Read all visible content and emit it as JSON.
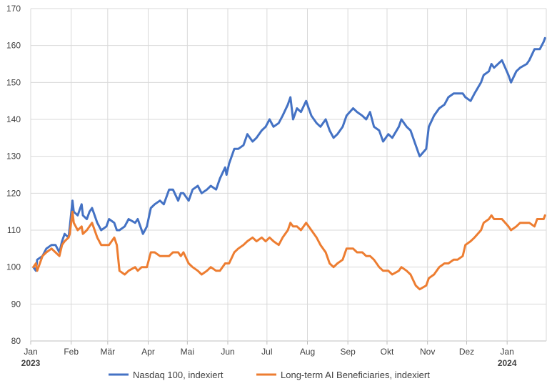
{
  "chart_data": {
    "type": "line",
    "title": "",
    "xlabel": "",
    "ylabel": "",
    "ylim": [
      80,
      170
    ],
    "yticks": [
      80,
      90,
      100,
      110,
      120,
      130,
      140,
      150,
      160,
      170
    ],
    "xlim": [
      "2023-01-01",
      "2024-01-31"
    ],
    "x_ticks": [
      {
        "date": "2023-01-01",
        "label": "Jan"
      },
      {
        "date": "2023-02-01",
        "label": "Feb"
      },
      {
        "date": "2023-03-01",
        "label": "Mär"
      },
      {
        "date": "2023-04-01",
        "label": "Apr"
      },
      {
        "date": "2023-05-01",
        "label": "Mai"
      },
      {
        "date": "2023-06-01",
        "label": "Jun"
      },
      {
        "date": "2023-07-01",
        "label": "Jul"
      },
      {
        "date": "2023-08-01",
        "label": "Aug"
      },
      {
        "date": "2023-09-01",
        "label": "Sep"
      },
      {
        "date": "2023-10-01",
        "label": "Okt"
      },
      {
        "date": "2023-11-01",
        "label": "Nov"
      },
      {
        "date": "2023-12-01",
        "label": "Dez"
      },
      {
        "date": "2024-01-01",
        "label": "Jan"
      }
    ],
    "year_labels": [
      {
        "date": "2023-01-01",
        "label": "2023"
      },
      {
        "date": "2024-01-01",
        "label": "2024"
      }
    ],
    "grid": true,
    "legend": "bottom",
    "series": [
      {
        "name": "Nasdaq 100, indexiert",
        "color": "#4472c4",
        "points": [
          [
            "2023-01-03",
            100
          ],
          [
            "2023-01-05",
            99
          ],
          [
            "2023-01-06",
            102
          ],
          [
            "2023-01-10",
            103
          ],
          [
            "2023-01-13",
            105
          ],
          [
            "2023-01-17",
            106
          ],
          [
            "2023-01-20",
            106
          ],
          [
            "2023-01-23",
            104
          ],
          [
            "2023-01-25",
            107
          ],
          [
            "2023-01-27",
            109
          ],
          [
            "2023-01-30",
            108
          ],
          [
            "2023-01-31",
            111
          ],
          [
            "2023-02-02",
            118
          ],
          [
            "2023-02-03",
            115
          ],
          [
            "2023-02-06",
            114
          ],
          [
            "2023-02-09",
            117
          ],
          [
            "2023-02-10",
            114
          ],
          [
            "2023-02-13",
            113
          ],
          [
            "2023-02-15",
            115
          ],
          [
            "2023-02-17",
            116
          ],
          [
            "2023-02-21",
            112
          ],
          [
            "2023-02-24",
            110
          ],
          [
            "2023-02-28",
            111
          ],
          [
            "2023-03-02",
            113
          ],
          [
            "2023-03-06",
            112
          ],
          [
            "2023-03-08",
            110
          ],
          [
            "2023-03-10",
            110
          ],
          [
            "2023-03-14",
            111
          ],
          [
            "2023-03-17",
            113
          ],
          [
            "2023-03-22",
            112
          ],
          [
            "2023-03-24",
            113
          ],
          [
            "2023-03-27",
            110
          ],
          [
            "2023-03-28",
            109
          ],
          [
            "2023-03-31",
            111
          ],
          [
            "2023-04-03",
            116
          ],
          [
            "2023-04-06",
            117
          ],
          [
            "2023-04-10",
            118
          ],
          [
            "2023-04-13",
            117
          ],
          [
            "2023-04-17",
            121
          ],
          [
            "2023-04-20",
            121
          ],
          [
            "2023-04-24",
            118
          ],
          [
            "2023-04-26",
            120
          ],
          [
            "2023-04-28",
            120
          ],
          [
            "2023-05-02",
            118
          ],
          [
            "2023-05-05",
            121
          ],
          [
            "2023-05-09",
            122
          ],
          [
            "2023-05-12",
            120
          ],
          [
            "2023-05-16",
            121
          ],
          [
            "2023-05-19",
            122
          ],
          [
            "2023-05-23",
            121
          ],
          [
            "2023-05-26",
            124
          ],
          [
            "2023-05-30",
            127
          ],
          [
            "2023-05-31",
            125
          ],
          [
            "2023-06-02",
            128
          ],
          [
            "2023-06-06",
            132
          ],
          [
            "2023-06-09",
            132
          ],
          [
            "2023-06-13",
            133
          ],
          [
            "2023-06-16",
            136
          ],
          [
            "2023-06-20",
            134
          ],
          [
            "2023-06-23",
            135
          ],
          [
            "2023-06-27",
            137
          ],
          [
            "2023-06-30",
            138
          ],
          [
            "2023-07-03",
            140
          ],
          [
            "2023-07-06",
            138
          ],
          [
            "2023-07-10",
            139
          ],
          [
            "2023-07-13",
            141
          ],
          [
            "2023-07-17",
            144
          ],
          [
            "2023-07-19",
            146
          ],
          [
            "2023-07-21",
            140
          ],
          [
            "2023-07-24",
            143
          ],
          [
            "2023-07-27",
            142
          ],
          [
            "2023-07-31",
            145
          ],
          [
            "2023-08-02",
            143
          ],
          [
            "2023-08-04",
            141
          ],
          [
            "2023-08-08",
            139
          ],
          [
            "2023-08-11",
            138
          ],
          [
            "2023-08-15",
            140
          ],
          [
            "2023-08-18",
            137
          ],
          [
            "2023-08-21",
            135
          ],
          [
            "2023-08-24",
            136
          ],
          [
            "2023-08-28",
            138
          ],
          [
            "2023-08-31",
            141
          ],
          [
            "2023-09-05",
            143
          ],
          [
            "2023-09-08",
            142
          ],
          [
            "2023-09-12",
            141
          ],
          [
            "2023-09-15",
            140
          ],
          [
            "2023-09-18",
            142
          ],
          [
            "2023-09-21",
            138
          ],
          [
            "2023-09-25",
            137
          ],
          [
            "2023-09-28",
            134
          ],
          [
            "2023-10-02",
            136
          ],
          [
            "2023-10-05",
            135
          ],
          [
            "2023-10-10",
            138
          ],
          [
            "2023-10-12",
            140
          ],
          [
            "2023-10-16",
            138
          ],
          [
            "2023-10-19",
            137
          ],
          [
            "2023-10-23",
            133
          ],
          [
            "2023-10-26",
            130
          ],
          [
            "2023-10-31",
            132
          ],
          [
            "2023-11-02",
            138
          ],
          [
            "2023-11-06",
            141
          ],
          [
            "2023-11-10",
            143
          ],
          [
            "2023-11-14",
            144
          ],
          [
            "2023-11-17",
            146
          ],
          [
            "2023-11-21",
            147
          ],
          [
            "2023-11-24",
            147
          ],
          [
            "2023-11-28",
            147
          ],
          [
            "2023-11-30",
            146
          ],
          [
            "2023-12-04",
            145
          ],
          [
            "2023-12-07",
            147
          ],
          [
            "2023-12-12",
            150
          ],
          [
            "2023-12-14",
            152
          ],
          [
            "2023-12-18",
            153
          ],
          [
            "2023-12-20",
            155
          ],
          [
            "2023-12-22",
            154
          ],
          [
            "2023-12-28",
            156
          ],
          [
            "2024-01-02",
            152
          ],
          [
            "2024-01-04",
            150
          ],
          [
            "2024-01-08",
            153
          ],
          [
            "2024-01-11",
            154
          ],
          [
            "2024-01-16",
            155
          ],
          [
            "2024-01-18",
            156
          ],
          [
            "2024-01-22",
            159
          ],
          [
            "2024-01-24",
            159
          ],
          [
            "2024-01-26",
            159
          ],
          [
            "2024-01-29",
            161
          ],
          [
            "2024-01-30",
            162
          ]
        ]
      },
      {
        "name": "Long-term AI Beneficiaries, indexiert",
        "color": "#ed7d31",
        "points": [
          [
            "2023-01-03",
            100
          ],
          [
            "2023-01-05",
            101
          ],
          [
            "2023-01-06",
            99
          ],
          [
            "2023-01-10",
            103
          ],
          [
            "2023-01-13",
            104
          ],
          [
            "2023-01-17",
            105
          ],
          [
            "2023-01-20",
            104
          ],
          [
            "2023-01-23",
            103
          ],
          [
            "2023-01-25",
            106
          ],
          [
            "2023-01-27",
            107
          ],
          [
            "2023-01-30",
            108
          ],
          [
            "2023-01-31",
            109
          ],
          [
            "2023-02-02",
            115
          ],
          [
            "2023-02-03",
            112
          ],
          [
            "2023-02-06",
            110
          ],
          [
            "2023-02-09",
            111
          ],
          [
            "2023-02-10",
            109
          ],
          [
            "2023-02-13",
            110
          ],
          [
            "2023-02-15",
            111
          ],
          [
            "2023-02-17",
            112
          ],
          [
            "2023-02-21",
            108
          ],
          [
            "2023-02-24",
            106
          ],
          [
            "2023-02-28",
            106
          ],
          [
            "2023-03-02",
            106
          ],
          [
            "2023-03-06",
            108
          ],
          [
            "2023-03-08",
            106
          ],
          [
            "2023-03-10",
            99
          ],
          [
            "2023-03-14",
            98
          ],
          [
            "2023-03-17",
            99
          ],
          [
            "2023-03-22",
            100
          ],
          [
            "2023-03-24",
            99
          ],
          [
            "2023-03-27",
            100
          ],
          [
            "2023-03-31",
            100
          ],
          [
            "2023-04-03",
            104
          ],
          [
            "2023-04-06",
            104
          ],
          [
            "2023-04-10",
            103
          ],
          [
            "2023-04-13",
            103
          ],
          [
            "2023-04-17",
            103
          ],
          [
            "2023-04-20",
            104
          ],
          [
            "2023-04-24",
            104
          ],
          [
            "2023-04-26",
            103
          ],
          [
            "2023-04-28",
            104
          ],
          [
            "2023-05-02",
            101
          ],
          [
            "2023-05-05",
            100
          ],
          [
            "2023-05-09",
            99
          ],
          [
            "2023-05-12",
            98
          ],
          [
            "2023-05-16",
            99
          ],
          [
            "2023-05-19",
            100
          ],
          [
            "2023-05-23",
            99
          ],
          [
            "2023-05-26",
            99
          ],
          [
            "2023-05-30",
            101
          ],
          [
            "2023-06-02",
            101
          ],
          [
            "2023-06-06",
            104
          ],
          [
            "2023-06-09",
            105
          ],
          [
            "2023-06-13",
            106
          ],
          [
            "2023-06-16",
            107
          ],
          [
            "2023-06-20",
            108
          ],
          [
            "2023-06-23",
            107
          ],
          [
            "2023-06-27",
            108
          ],
          [
            "2023-06-30",
            107
          ],
          [
            "2023-07-03",
            108
          ],
          [
            "2023-07-06",
            107
          ],
          [
            "2023-07-10",
            106
          ],
          [
            "2023-07-13",
            108
          ],
          [
            "2023-07-17",
            110
          ],
          [
            "2023-07-19",
            112
          ],
          [
            "2023-07-21",
            111
          ],
          [
            "2023-07-24",
            111
          ],
          [
            "2023-07-27",
            110
          ],
          [
            "2023-07-31",
            112
          ],
          [
            "2023-08-02",
            111
          ],
          [
            "2023-08-04",
            110
          ],
          [
            "2023-08-08",
            108
          ],
          [
            "2023-08-11",
            106
          ],
          [
            "2023-08-15",
            104
          ],
          [
            "2023-08-18",
            101
          ],
          [
            "2023-08-21",
            100
          ],
          [
            "2023-08-24",
            101
          ],
          [
            "2023-08-28",
            102
          ],
          [
            "2023-08-31",
            105
          ],
          [
            "2023-09-05",
            105
          ],
          [
            "2023-09-08",
            104
          ],
          [
            "2023-09-12",
            104
          ],
          [
            "2023-09-15",
            103
          ],
          [
            "2023-09-18",
            103
          ],
          [
            "2023-09-21",
            102
          ],
          [
            "2023-09-25",
            100
          ],
          [
            "2023-09-28",
            99
          ],
          [
            "2023-10-02",
            99
          ],
          [
            "2023-10-05",
            98
          ],
          [
            "2023-10-10",
            99
          ],
          [
            "2023-10-12",
            100
          ],
          [
            "2023-10-16",
            99
          ],
          [
            "2023-10-19",
            98
          ],
          [
            "2023-10-23",
            95
          ],
          [
            "2023-10-26",
            94
          ],
          [
            "2023-10-31",
            95
          ],
          [
            "2023-11-02",
            97
          ],
          [
            "2023-11-06",
            98
          ],
          [
            "2023-11-10",
            100
          ],
          [
            "2023-11-14",
            101
          ],
          [
            "2023-11-17",
            101
          ],
          [
            "2023-11-21",
            102
          ],
          [
            "2023-11-24",
            102
          ],
          [
            "2023-11-28",
            103
          ],
          [
            "2023-11-30",
            106
          ],
          [
            "2023-12-04",
            107
          ],
          [
            "2023-12-07",
            108
          ],
          [
            "2023-12-12",
            110
          ],
          [
            "2023-12-14",
            112
          ],
          [
            "2023-12-18",
            113
          ],
          [
            "2023-12-20",
            114
          ],
          [
            "2023-12-22",
            113
          ],
          [
            "2023-12-28",
            113
          ],
          [
            "2024-01-02",
            111
          ],
          [
            "2024-01-04",
            110
          ],
          [
            "2024-01-08",
            111
          ],
          [
            "2024-01-11",
            112
          ],
          [
            "2024-01-16",
            112
          ],
          [
            "2024-01-18",
            112
          ],
          [
            "2024-01-22",
            111
          ],
          [
            "2024-01-24",
            113
          ],
          [
            "2024-01-26",
            113
          ],
          [
            "2024-01-29",
            113
          ],
          [
            "2024-01-30",
            114
          ]
        ]
      }
    ]
  }
}
